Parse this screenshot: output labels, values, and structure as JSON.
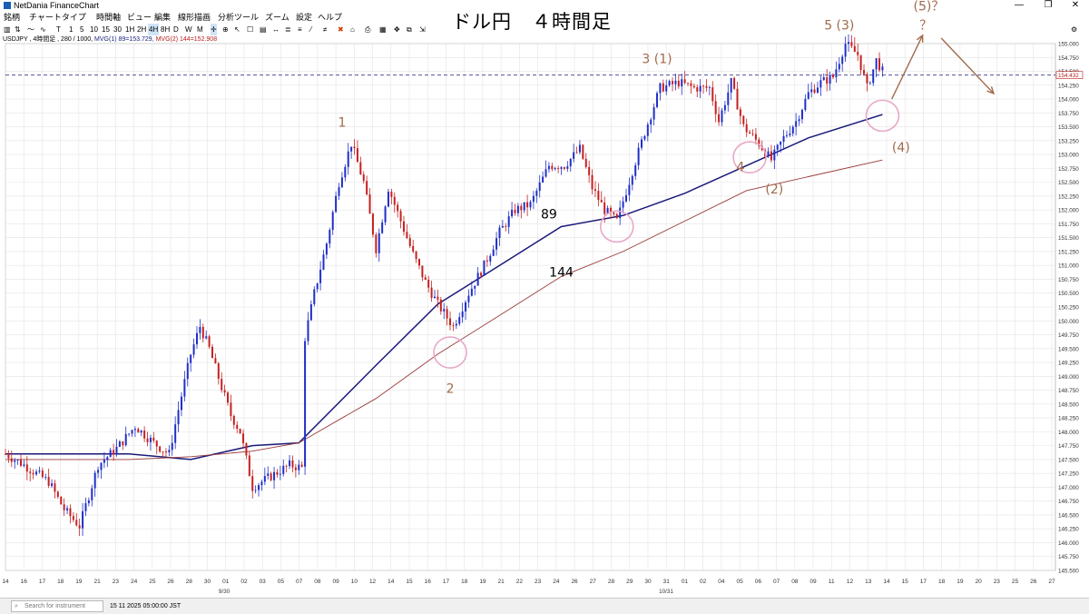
{
  "window": {
    "title": "NetDania FinanceChart",
    "minimize": "—",
    "maximize": "❐",
    "close": "✕"
  },
  "menu": [
    "銘柄",
    "チャートタイプ",
    "時間軸",
    "ビュー",
    "編集",
    "線形描画",
    "分析ツール",
    "ズーム",
    "設定",
    "ヘルプ"
  ],
  "toolbar": {
    "timeframes": [
      "T",
      "1",
      "5",
      "10",
      "15",
      "30",
      "1H",
      "2H",
      "4H",
      "8H",
      "D",
      "W",
      "M"
    ],
    "selected": "4H",
    "tools": [
      "≡",
      "✕",
      "⊕",
      "✎",
      "↗",
      "↘",
      "⧉",
      "⚑"
    ]
  },
  "chart_title": "ドル円　４時間足",
  "info": {
    "symbol": "USDJPY , 4時間足 , 280 / 1000,",
    "mvg1": "MVG(1) 89=153.729,",
    "mvg2": "MVG(2) 144=152.908"
  },
  "price_tag": "154.432",
  "status": {
    "search_placeholder": "Search for instrument",
    "time": "15 11 2025 05:00:00 JST"
  },
  "chart_data": {
    "type": "candlestick",
    "y_ticks": [
      "155.000",
      "154.750",
      "154.500",
      "154.250",
      "154.000",
      "153.750",
      "153.500",
      "153.250",
      "153.000",
      "152.750",
      "152.500",
      "152.250",
      "152.000",
      "151.750",
      "151.500",
      "151.250",
      "151.000",
      "150.750",
      "150.500",
      "150.250",
      "150.000",
      "149.750",
      "149.500",
      "149.250",
      "149.000",
      "148.750",
      "148.500",
      "148.250",
      "148.000",
      "147.750",
      "147.500",
      "147.250",
      "147.000",
      "146.750",
      "146.500",
      "146.250",
      "146.000",
      "145.750",
      "145.500"
    ],
    "ylim": [
      145.5,
      155.0
    ],
    "x_ticks": [
      "14",
      "16",
      "17",
      "18",
      "19",
      "21",
      "23",
      "24",
      "25",
      "26",
      "28",
      "30",
      "01",
      "02",
      "03",
      "05",
      "07",
      "08",
      "09",
      "10",
      "12",
      "14",
      "15",
      "16",
      "17",
      "18",
      "19",
      "21",
      "22",
      "23",
      "24",
      "26",
      "27",
      "28",
      "29",
      "30",
      "31",
      "01",
      "02",
      "04",
      "05",
      "06",
      "07",
      "08",
      "09",
      "11",
      "12",
      "13",
      "14",
      "15",
      "17",
      "18",
      "19",
      "20",
      "23",
      "25",
      "26",
      "27"
    ],
    "x_month_labels": [
      "9/30",
      "10/31"
    ],
    "close_path": [
      [
        0,
        147.6
      ],
      [
        6,
        147.4
      ],
      [
        14,
        147.1
      ],
      [
        19,
        146.6
      ],
      [
        24,
        146.3
      ],
      [
        30,
        147.4
      ],
      [
        36,
        147.7
      ],
      [
        42,
        148.1
      ],
      [
        48,
        147.8
      ],
      [
        53,
        147.6
      ],
      [
        56,
        148.4
      ],
      [
        60,
        149.4
      ],
      [
        63,
        149.9
      ],
      [
        66,
        149.5
      ],
      [
        70,
        148.8
      ],
      [
        73,
        148.3
      ],
      [
        76,
        148.0
      ],
      [
        80,
        147.0
      ],
      [
        86,
        147.2
      ],
      [
        92,
        147.4
      ],
      [
        96,
        147.35
      ],
      [
        97,
        149.7
      ],
      [
        100,
        150.5
      ],
      [
        104,
        151.4
      ],
      [
        108,
        152.5
      ],
      [
        112,
        153.2
      ],
      [
        116,
        152.5
      ],
      [
        120,
        151.3
      ],
      [
        124,
        152.4
      ],
      [
        128,
        151.8
      ],
      [
        132,
        151.2
      ],
      [
        136,
        150.7
      ],
      [
        140,
        150.3
      ],
      [
        145,
        149.9
      ],
      [
        150,
        150.5
      ],
      [
        155,
        151.0
      ],
      [
        160,
        151.6
      ],
      [
        165,
        152.0
      ],
      [
        170,
        152.1
      ],
      [
        176,
        152.8
      ],
      [
        181,
        152.8
      ],
      [
        186,
        153.1
      ],
      [
        190,
        152.4
      ],
      [
        194,
        152.0
      ],
      [
        198,
        151.8
      ],
      [
        203,
        152.7
      ],
      [
        207,
        153.4
      ],
      [
        212,
        154.2
      ],
      [
        218,
        154.3
      ],
      [
        223,
        154.2
      ],
      [
        228,
        154.2
      ],
      [
        231,
        153.6
      ],
      [
        235,
        154.3
      ],
      [
        239,
        153.5
      ],
      [
        244,
        153.2
      ],
      [
        248,
        152.9
      ],
      [
        252,
        153.3
      ],
      [
        256,
        153.6
      ],
      [
        260,
        154.1
      ],
      [
        264,
        154.3
      ],
      [
        268,
        154.4
      ],
      [
        272,
        155.0
      ],
      [
        276,
        154.8
      ],
      [
        279,
        154.2
      ],
      [
        282,
        154.7
      ],
      [
        284,
        154.5
      ]
    ],
    "series": [
      {
        "name": "89",
        "color": "#1a1a7a",
        "values": [
          [
            0,
            147.6
          ],
          [
            40,
            147.6
          ],
          [
            60,
            147.5
          ],
          [
            80,
            147.75
          ],
          [
            95,
            147.8
          ],
          [
            120,
            149.2
          ],
          [
            140,
            150.3
          ],
          [
            160,
            151.0
          ],
          [
            180,
            151.7
          ],
          [
            200,
            151.9
          ],
          [
            220,
            152.3
          ],
          [
            240,
            152.8
          ],
          [
            260,
            153.3
          ],
          [
            284,
            153.72
          ]
        ]
      },
      {
        "name": "144",
        "color": "#9a3a3a",
        "values": [
          [
            0,
            147.5
          ],
          [
            40,
            147.5
          ],
          [
            60,
            147.55
          ],
          [
            80,
            147.65
          ],
          [
            95,
            147.8
          ],
          [
            120,
            148.6
          ],
          [
            140,
            149.4
          ],
          [
            160,
            150.1
          ],
          [
            180,
            150.8
          ],
          [
            200,
            151.25
          ],
          [
            220,
            151.8
          ],
          [
            240,
            152.35
          ],
          [
            260,
            152.6
          ],
          [
            284,
            152.9
          ]
        ]
      }
    ],
    "annotations": [
      {
        "text": "1",
        "x": 109,
        "y": 153.5,
        "color": "#a06a4a"
      },
      {
        "text": "2",
        "x": 144,
        "y": 148.7,
        "color": "#a06a4a"
      },
      {
        "text": "3 (1)",
        "x": 211,
        "y": 154.65,
        "color": "#a06a4a"
      },
      {
        "text": "4",
        "x": 238,
        "y": 152.7,
        "color": "#a06a4a"
      },
      {
        "text": "(2)",
        "x": 249,
        "y": 152.3,
        "color": "#a06a4a"
      },
      {
        "text": "5 (3)",
        "x": 270,
        "y": 155.25,
        "color": "#a06a4a"
      },
      {
        "text": "(4)",
        "x": 290,
        "y": 153.05,
        "color": "#a06a4a"
      },
      {
        "text": "(5)？",
        "x": 299,
        "y": 155.6,
        "color": "#a06a4a"
      },
      {
        "text": "？",
        "x": 298,
        "y": 155.25,
        "color": "#a06a4a"
      },
      {
        "text": "89",
        "x": 176,
        "y": 151.85,
        "color": "#000000"
      },
      {
        "text": "144",
        "x": 180,
        "y": 150.8,
        "color": "#000000"
      }
    ],
    "circles": [
      {
        "x": 144,
        "y": 149.43
      },
      {
        "x": 198,
        "y": 151.7
      },
      {
        "x": 241,
        "y": 152.95
      },
      {
        "x": 284,
        "y": 153.7
      }
    ],
    "forecast_arrows": [
      {
        "from": [
          287,
          154.0
        ],
        "to": [
          297,
          155.15
        ]
      },
      {
        "from": [
          303,
          155.1
        ],
        "to": [
          320,
          154.1
        ]
      }
    ],
    "hline": 154.432
  }
}
